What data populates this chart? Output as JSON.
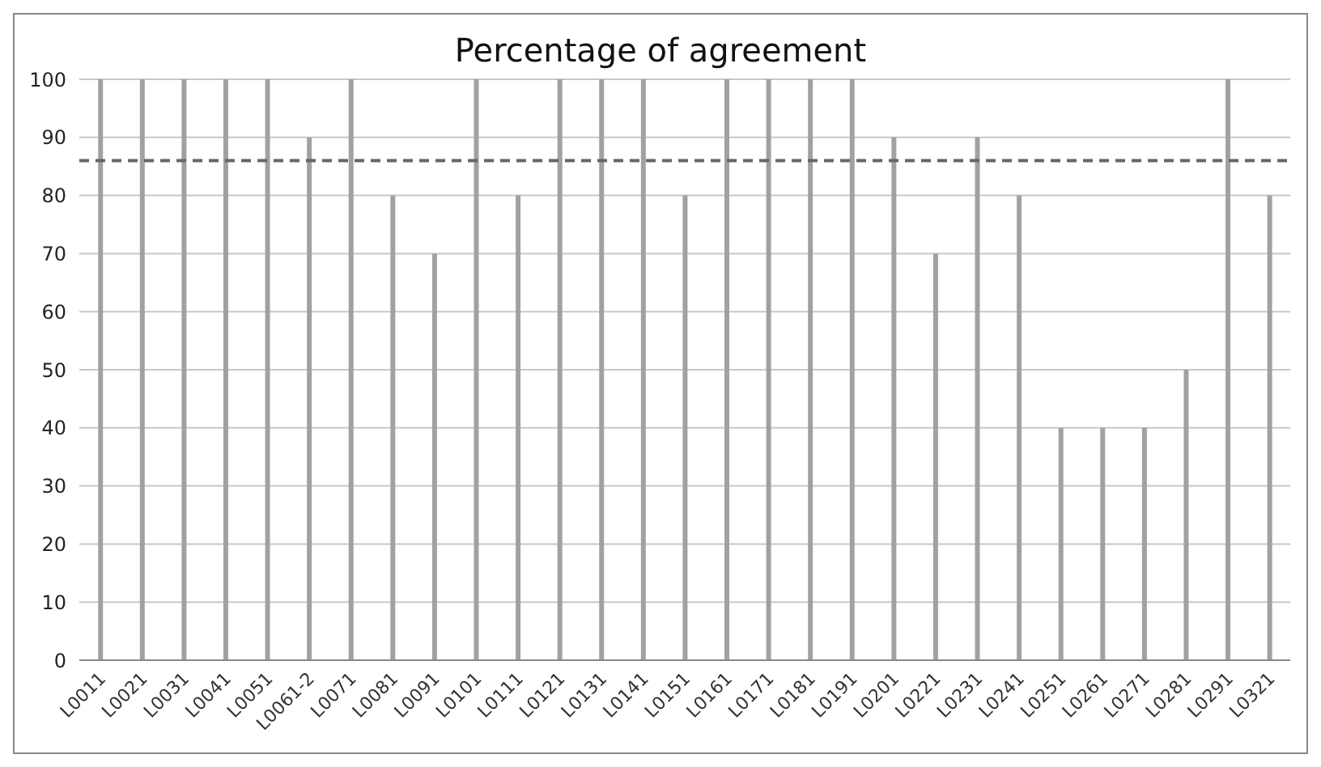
{
  "chart_data": {
    "type": "bar",
    "title": "Percentage of agreement",
    "categories": [
      "L0011",
      "L0021",
      "L0031",
      "L0041",
      "L0051",
      "L0061-2",
      "L0071",
      "L0081",
      "L0091",
      "L0101",
      "L0111",
      "L0121",
      "L0131",
      "L0141",
      "L0151",
      "L0161",
      "L0171",
      "L0181",
      "L0191",
      "L0201",
      "L0221",
      "L0231",
      "L0241",
      "L0251",
      "L0261",
      "L0271",
      "L0281",
      "L0291",
      "L0321"
    ],
    "values": [
      100,
      100,
      100,
      100,
      100,
      90,
      100,
      80,
      70,
      100,
      80,
      100,
      100,
      100,
      80,
      100,
      100,
      100,
      100,
      90,
      70,
      90,
      80,
      40,
      40,
      40,
      50,
      100,
      80
    ],
    "color": "#a0a2a2",
    "ylim": [
      0,
      100
    ],
    "yticks": [
      0,
      10,
      20,
      30,
      40,
      50,
      60,
      70,
      80,
      90,
      100
    ],
    "grid": "y",
    "ref_lines": [
      {
        "axis": "y",
        "value": 86,
        "color": "#666666",
        "line_style": "dashed"
      }
    ]
  }
}
